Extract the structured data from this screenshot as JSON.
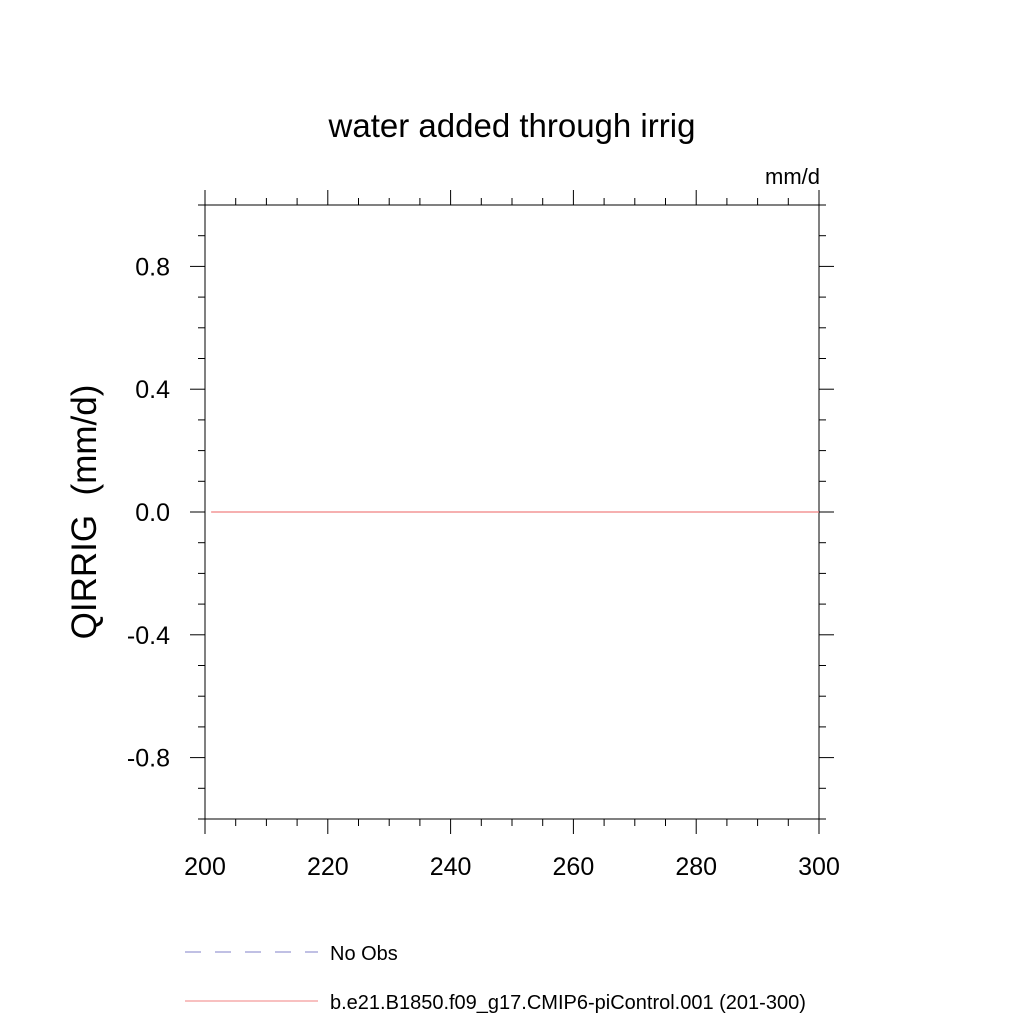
{
  "chart_data": {
    "type": "line",
    "title": "water added through irrig",
    "units": "mm/d",
    "ylabel": "QIRRIG  (mm/d)",
    "xlabel": "",
    "xlim": [
      200,
      300
    ],
    "ylim": [
      -1.0,
      1.0
    ],
    "x_ticks": [
      200,
      220,
      240,
      260,
      280,
      300
    ],
    "x_tick_labels": [
      "200",
      "220",
      "240",
      "260",
      "280",
      "300"
    ],
    "y_ticks": [
      -0.8,
      -0.4,
      0.0,
      0.4,
      0.8
    ],
    "y_tick_labels": [
      "-0.8",
      "-0.4",
      "0.0",
      "0.4",
      "0.8"
    ],
    "grid": false,
    "legend_position": "bottom",
    "series": [
      {
        "name": "No Obs",
        "color": "#8080c8",
        "style": "dashed",
        "x": [],
        "y": []
      },
      {
        "name": "b.e21.B1850.f09_g17.CMIP6-piControl.001 (201-300)",
        "color": "#f08080",
        "style": "solid",
        "x": [
          201,
          300
        ],
        "y": [
          0.0,
          0.0
        ]
      }
    ]
  }
}
